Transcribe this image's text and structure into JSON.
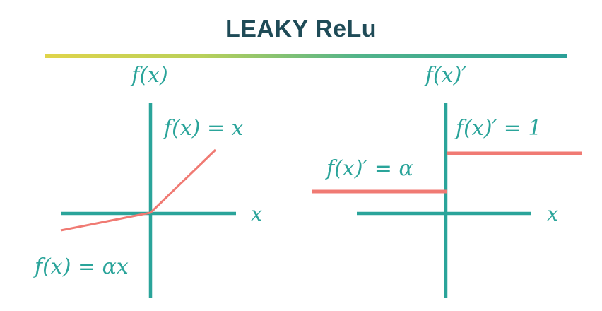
{
  "title": "LEAKY ReLu",
  "colors": {
    "title": "#1f4b57",
    "axis": "#2aa49a",
    "function": "#f07a73",
    "rule_gradient": [
      "#e0d44a",
      "#9ccb6a",
      "#2aa49a",
      "#2a9f98"
    ]
  },
  "left_panel": {
    "heading": "f(x)",
    "positive_label": "f(x) = x",
    "negative_label": "f(x) = αx",
    "x_axis_label": "x"
  },
  "right_panel": {
    "heading": "f(x)′",
    "positive_label": "f(x)′ = 1",
    "negative_label": "f(x)′ = α",
    "x_axis_label": "x"
  }
}
